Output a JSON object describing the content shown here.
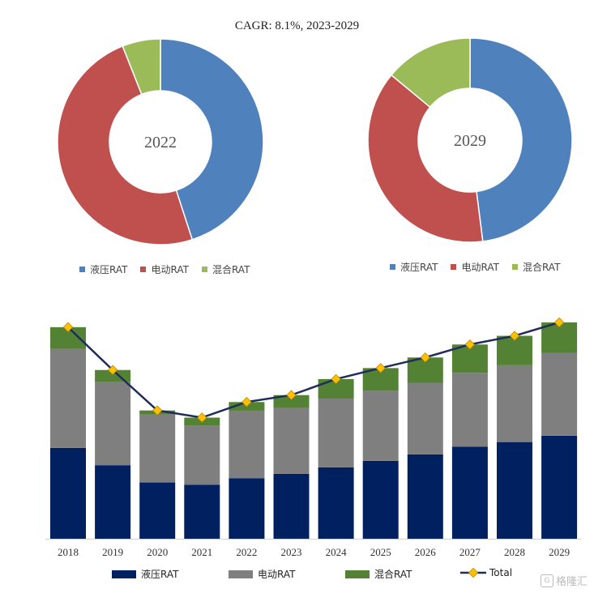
{
  "chart_data": [
    {
      "type": "donut",
      "title": "CAGR: 8.1%, 2023-2029",
      "center_label": "2022",
      "categories": [
        "液压RAT",
        "电动RAT",
        "混合RAT"
      ],
      "values": [
        45,
        49,
        6
      ]
    },
    {
      "type": "donut",
      "center_label": "2029",
      "categories": [
        "液压RAT",
        "电动RAT",
        "混合RAT"
      ],
      "values": [
        48,
        38,
        14
      ]
    },
    {
      "type": "bar",
      "stacked": true,
      "categories": [
        "2018",
        "2019",
        "2020",
        "2021",
        "2022",
        "2023",
        "2024",
        "2025",
        "2026",
        "2027",
        "2028",
        "2029"
      ],
      "series": [
        {
          "name": "液压RAT",
          "values": [
            42,
            34,
            26,
            25,
            28,
            30,
            33,
            36,
            39,
            42.5,
            44.7,
            47.6
          ]
        },
        {
          "name": "电动RAT",
          "values": [
            45.8,
            38.4,
            31.4,
            27.3,
            31.2,
            30.4,
            31.8,
            32.4,
            33.1,
            34.2,
            35.5,
            38.2
          ]
        },
        {
          "name": "混合RAT",
          "values": [
            10,
            5.6,
            1.9,
            3.7,
            4,
            6,
            9,
            10.5,
            11.7,
            13.1,
            13.6,
            14.2
          ]
        }
      ],
      "line": {
        "name": "Total",
        "values": [
          97.8,
          78,
          59.3,
          56,
          63.2,
          66.4,
          73.8,
          78.9,
          83.8,
          89.8,
          93.8,
          100
        ]
      },
      "ylim": [
        0,
        100
      ]
    }
  ],
  "colors": {
    "pie_hydraulic": "#4f81bd",
    "pie_electric": "#c0504d",
    "pie_hybrid": "#9bbb59",
    "bar_hydraulic": "#002060",
    "bar_electric": "#7f7f7f",
    "bar_hybrid": "#548235",
    "line": "#1f2d5a",
    "marker": "#ffc000"
  },
  "legend_bar": {
    "total_label": "Total"
  },
  "watermark": {
    "text": "格隆汇"
  }
}
